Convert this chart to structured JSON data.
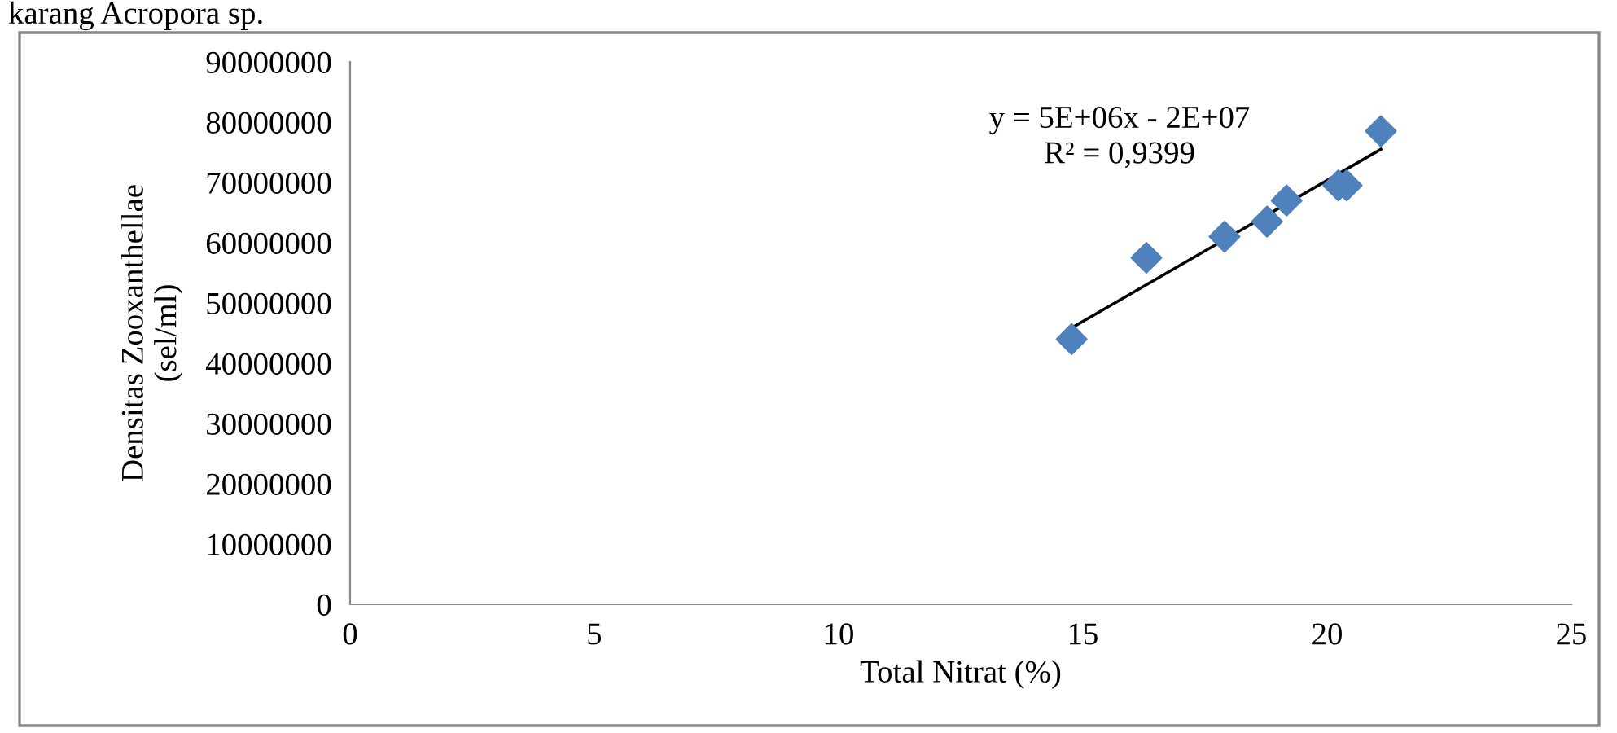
{
  "chart_data": {
    "type": "scatter",
    "xlabel": "Total Nitrat (%)",
    "ylabel": "Densitas Zooxanthellae\n(sel/ml)",
    "annotations": [
      "karang Acropora sp.",
      "y = 5E+06x - 2E+07\nR² = 0,9399"
    ],
    "series": [
      {
        "color": "#4f81bd",
        "marker": "diamond",
        "x": [
          14.77,
          16.3,
          17.9,
          18.77,
          19.17,
          20.23,
          20.4,
          21.1
        ],
        "values": [
          44000000,
          57500000,
          61000000,
          63500000,
          67000000,
          69500000,
          69500000,
          78500000
        ]
      },
      {
        "type": "line",
        "color": "#000000",
        "marker": "none",
        "x": [
          14.8,
          21.1
        ],
        "values": [
          46000000,
          75500000
        ]
      }
    ],
    "xlim": [
      0,
      25
    ],
    "xticks": [
      0,
      5,
      10,
      15,
      20,
      25
    ],
    "ylim": [
      0,
      90000000
    ],
    "yticks": [
      0,
      10000000,
      20000000,
      30000000,
      40000000,
      50000000,
      60000000,
      70000000,
      80000000,
      90000000
    ],
    "grid": false
  }
}
